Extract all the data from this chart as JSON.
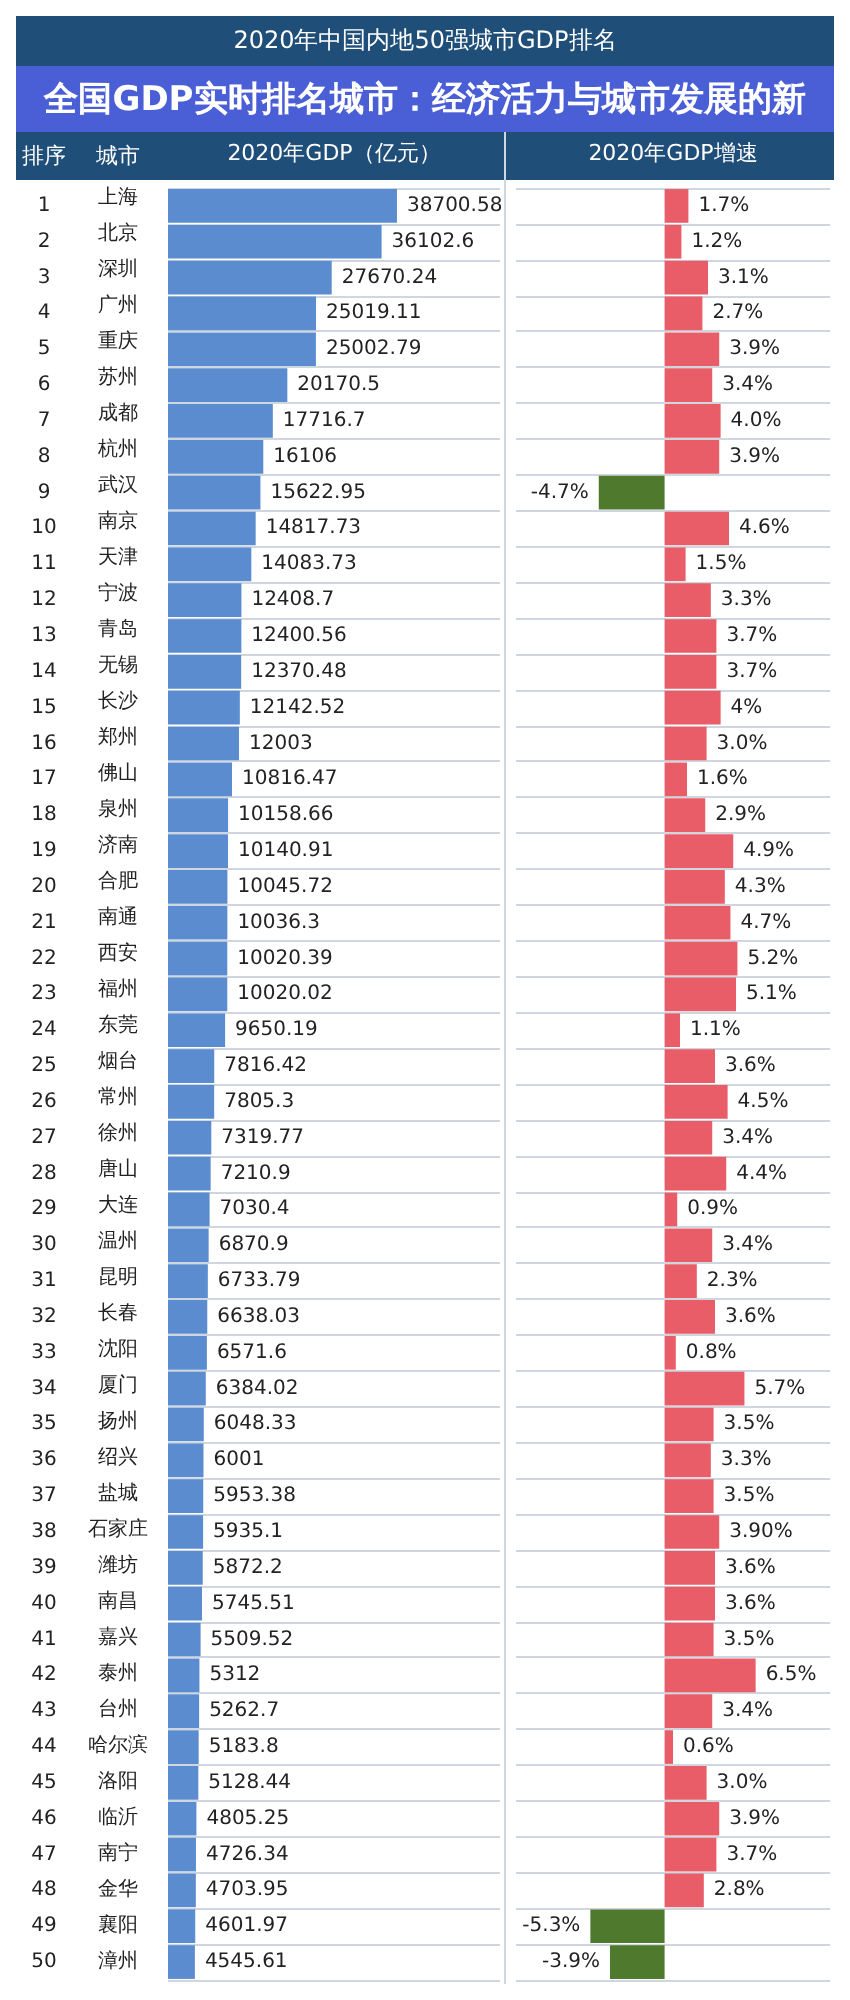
{
  "chart_data": [
    {
      "type": "bar",
      "orientation": "horizontal",
      "title": "2020年中国内地50强城市GDP排名",
      "subtitle": "全国GDP实时排名城市：经济活力与城市发展的新",
      "ylabel": "排序",
      "xlabel": "2020年GDP（亿元）",
      "grid": "y",
      "data_labels": true,
      "color": "#5b8ccf",
      "categories": [
        "1",
        "2",
        "3",
        "4",
        "5",
        "6",
        "7",
        "8",
        "9",
        "10",
        "11",
        "12",
        "13",
        "14",
        "15",
        "16",
        "17",
        "18",
        "19",
        "20",
        "21",
        "22",
        "23",
        "24",
        "25",
        "26",
        "27",
        "28",
        "29",
        "30",
        "31",
        "32",
        "33",
        "34",
        "35",
        "36",
        "37",
        "38",
        "39",
        "40",
        "41",
        "42",
        "43",
        "44",
        "45",
        "46",
        "47",
        "48",
        "49",
        "50"
      ],
      "values": [
        38700.58,
        36102.6,
        27670.24,
        25019.11,
        25002.79,
        20170.5,
        17716.7,
        16106,
        15622.95,
        14817.73,
        14083.73,
        12408.7,
        12400.56,
        12370.48,
        12142.52,
        12003,
        10816.47,
        10158.66,
        10140.91,
        10045.72,
        10036.3,
        10020.39,
        10020.02,
        9650.19,
        7816.42,
        7805.3,
        7319.77,
        7210.9,
        7030.4,
        6870.9,
        6733.79,
        6638.03,
        6571.6,
        6384.02,
        6048.33,
        6001,
        5953.38,
        5935.1,
        5872.2,
        5745.51,
        5509.52,
        5312,
        5262.7,
        5183.8,
        5128.44,
        4805.25,
        4726.34,
        4703.95,
        4601.97,
        4545.61
      ],
      "annotations": [
        "城市",
        "上海",
        "北京",
        "深圳",
        "广州",
        "重庆",
        "苏州",
        "成都",
        "杭州",
        "武汉",
        "南京",
        "天津",
        "宁波",
        "青岛",
        "无锡",
        "长沙",
        "郑州",
        "佛山",
        "泉州",
        "济南",
        "合肥",
        "南通",
        "西安",
        "福州",
        "东莞",
        "烟台",
        "常州",
        "徐州",
        "唐山",
        "大连",
        "温州",
        "昆明",
        "长春",
        "沈阳",
        "厦门",
        "扬州",
        "绍兴",
        "盐城",
        "石家庄",
        "潍坊",
        "南昌",
        "嘉兴",
        "泰州",
        "台州",
        "哈尔滨",
        "洛阳",
        "临沂",
        "南宁",
        "金华",
        "襄阳",
        "漳州"
      ]
    },
    {
      "type": "bar",
      "orientation": "horizontal",
      "xlabel": "2020年GDP增速",
      "grid": "y",
      "categories": [
        null,
        null,
        null,
        null,
        null,
        null,
        null,
        null,
        null,
        null,
        null,
        null,
        null,
        null,
        null,
        null,
        null,
        null,
        null,
        null,
        null,
        null,
        null,
        null,
        null,
        null,
        null,
        null,
        null,
        null,
        null,
        null,
        null,
        null,
        null,
        null,
        null,
        null,
        null,
        null,
        null,
        null,
        null,
        null,
        null,
        null,
        null,
        null,
        null,
        null
      ],
      "values": [
        1.7,
        1.2,
        3.1,
        2.7,
        3.9,
        3.4,
        4.0,
        3.9,
        -4.7,
        4.6,
        1.5,
        3.3,
        3.7,
        3.7,
        4,
        3.0,
        1.6,
        2.9,
        4.9,
        4.3,
        4.7,
        5.2,
        5.1,
        1.1,
        3.6,
        4.5,
        3.4,
        4.4,
        0.9,
        3.4,
        2.3,
        3.6,
        0.8,
        5.7,
        3.5,
        3.3,
        3.5,
        3.9,
        3.6,
        3.6,
        3.5,
        6.5,
        3.4,
        0.6,
        3.0,
        3.9,
        3.7,
        2.8,
        -5.3,
        -3.9
      ],
      "value_labels": [
        "1.7%",
        "1.2%",
        "3.1%",
        "2.7%",
        "3.9%",
        "3.4%",
        "4.0%",
        "3.9%",
        "-4.7%",
        "4.6%",
        "1.5%",
        "3.3%",
        "3.7%",
        "3.7%",
        "4%",
        "3.0%",
        "1.6%",
        "2.9%",
        "4.9%",
        "4.3%",
        "4.7%",
        "5.2%",
        "5.1%",
        "1.1%",
        "3.6%",
        "4.5%",
        "3.4%",
        "4.4%",
        "0.9%",
        "3.4%",
        "2.3%",
        "3.6%",
        "0.8%",
        "5.7%",
        "3.5%",
        "3.3%",
        "3.5%",
        "3.90%",
        "3.6%",
        "3.6%",
        "3.5%",
        "6.5%",
        "3.4%",
        "0.6%",
        "3.0%",
        "3.9%",
        "3.7%",
        "2.8%",
        "-5.3%",
        "-3.9%"
      ],
      "colors": [
        "#e85d67",
        "#e85d67",
        "#e85d67",
        "#e85d67",
        "#e85d67",
        "#e85d67",
        "#e85d67",
        "#e85d67",
        "#4f7a2e",
        "#e85d67",
        "#e85d67",
        "#e85d67",
        "#e85d67",
        "#e85d67",
        "#e85d67",
        "#e85d67",
        "#e85d67",
        "#e85d67",
        "#e85d67",
        "#e85d67",
        "#e85d67",
        "#e85d67",
        "#e85d67",
        "#e85d67",
        "#e85d67",
        "#e85d67",
        "#e85d67",
        "#e85d67",
        "#e85d67",
        "#e85d67",
        "#e85d67",
        "#e85d67",
        "#e85d67",
        "#e85d67",
        "#e85d67",
        "#e85d67",
        "#e85d67",
        "#e85d67",
        "#e85d67",
        "#e85d67",
        "#e85d67",
        "#e85d67",
        "#e85d67",
        "#e85d67",
        "#e85d67",
        "#e85d67",
        "#e85d67",
        "#e85d67",
        "#4f7a2e",
        "#4f7a2e"
      ]
    }
  ]
}
